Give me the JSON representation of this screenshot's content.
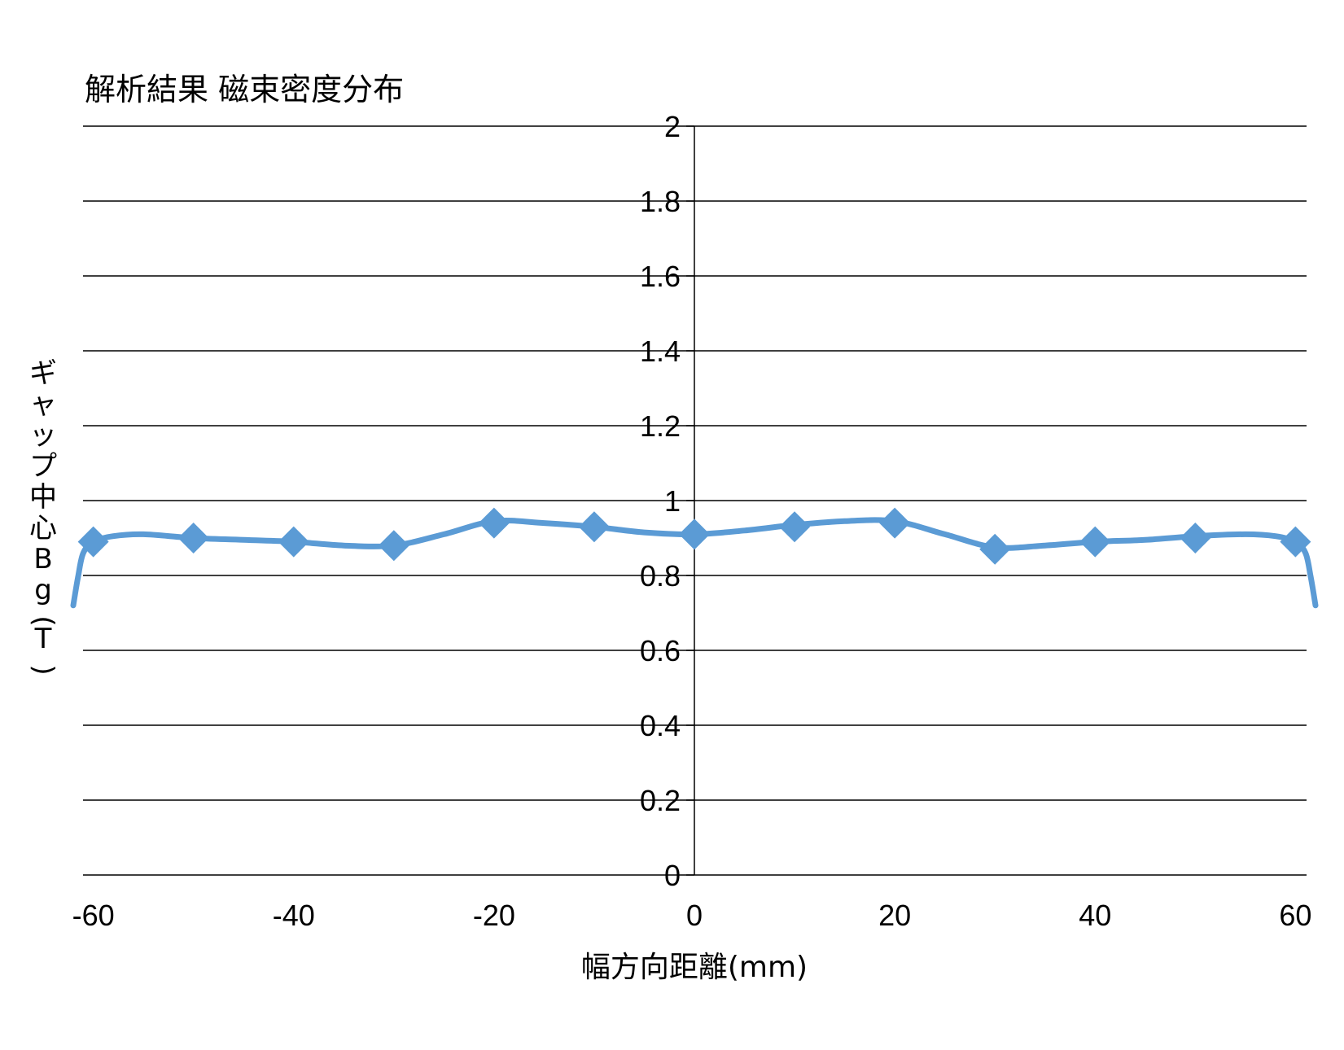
{
  "chart_data": {
    "type": "line",
    "title": "解析結果 磁束密度分布",
    "xlabel": "幅方向距離(mm)",
    "ylabel": "ギャップ中心Bg(T)",
    "xlim": [
      -62,
      62
    ],
    "ylim": [
      0,
      2
    ],
    "x_ticks": [
      -60,
      -40,
      -20,
      0,
      20,
      40,
      60
    ],
    "y_ticks": [
      0,
      0.2,
      0.4,
      0.6,
      0.8,
      1,
      1.2,
      1.4,
      1.6,
      1.8,
      2
    ],
    "grid": true,
    "legend": "none",
    "series": [
      {
        "color": "#5B9BD5",
        "marker": "diamond",
        "markers": [
          {
            "x": -60,
            "y": 0.89
          },
          {
            "x": -50,
            "y": 0.9
          },
          {
            "x": -40,
            "y": 0.89
          },
          {
            "x": -30,
            "y": 0.88
          },
          {
            "x": -20,
            "y": 0.94
          },
          {
            "x": -10,
            "y": 0.93
          },
          {
            "x": 0,
            "y": 0.91
          },
          {
            "x": 10,
            "y": 0.93
          },
          {
            "x": 20,
            "y": 0.94
          },
          {
            "x": 30,
            "y": 0.87
          },
          {
            "x": 40,
            "y": 0.89
          },
          {
            "x": 50,
            "y": 0.9
          },
          {
            "x": 60,
            "y": 0.89
          }
        ],
        "curve": [
          {
            "x": -62,
            "y": 0.72
          },
          {
            "x": -61.5,
            "y": 0.8
          },
          {
            "x": -61,
            "y": 0.86
          },
          {
            "x": -60,
            "y": 0.89
          },
          {
            "x": -58,
            "y": 0.905
          },
          {
            "x": -55,
            "y": 0.91
          },
          {
            "x": -50,
            "y": 0.9
          },
          {
            "x": -45,
            "y": 0.895
          },
          {
            "x": -40,
            "y": 0.89
          },
          {
            "x": -35,
            "y": 0.88
          },
          {
            "x": -30,
            "y": 0.88
          },
          {
            "x": -25,
            "y": 0.91
          },
          {
            "x": -20,
            "y": 0.945
          },
          {
            "x": -15,
            "y": 0.94
          },
          {
            "x": -10,
            "y": 0.93
          },
          {
            "x": -5,
            "y": 0.915
          },
          {
            "x": 0,
            "y": 0.91
          },
          {
            "x": 5,
            "y": 0.92
          },
          {
            "x": 10,
            "y": 0.935
          },
          {
            "x": 15,
            "y": 0.945
          },
          {
            "x": 20,
            "y": 0.945
          },
          {
            "x": 25,
            "y": 0.91
          },
          {
            "x": 30,
            "y": 0.875
          },
          {
            "x": 35,
            "y": 0.88
          },
          {
            "x": 40,
            "y": 0.89
          },
          {
            "x": 45,
            "y": 0.895
          },
          {
            "x": 50,
            "y": 0.905
          },
          {
            "x": 55,
            "y": 0.91
          },
          {
            "x": 58,
            "y": 0.905
          },
          {
            "x": 60,
            "y": 0.89
          },
          {
            "x": 61,
            "y": 0.86
          },
          {
            "x": 61.5,
            "y": 0.8
          },
          {
            "x": 62,
            "y": 0.72
          }
        ]
      }
    ]
  }
}
